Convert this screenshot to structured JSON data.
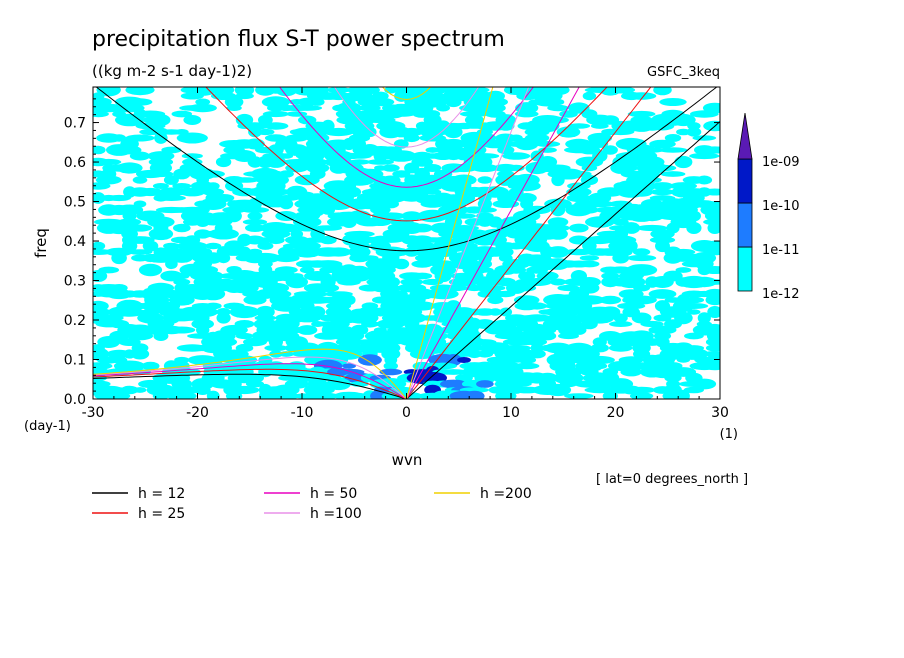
{
  "chart_data": {
    "type": "heatmap",
    "title": "precipitation flux S-T power spectrum",
    "subtitle": "((kg m-2 s-1 day-1)2)",
    "model_label": "GSFC_3keq",
    "xlabel": "wvn",
    "ylabel": "freq",
    "x_unit": "(1)",
    "y_unit": "(day-1)",
    "region_note": "[ lat=0 degrees_north ]",
    "xlim": [
      -30,
      30
    ],
    "ylim": [
      0,
      0.79
    ],
    "x_ticks": [
      "-30",
      "-20",
      "-10",
      "0",
      "10",
      "20",
      "30"
    ],
    "y_ticks": [
      "0.0",
      "0.1",
      "0.2",
      "0.3",
      "0.4",
      "0.5",
      "0.6",
      "0.7"
    ],
    "colorbar": {
      "levels": [
        "1e-12",
        "1e-11",
        "1e-10",
        "1e-09"
      ],
      "colors": [
        "#00ffff",
        "#1e7cff",
        "#0018c8",
        "#5a1ab4"
      ]
    },
    "dispersion_curves": [
      {
        "label": "h = 12",
        "h": 12,
        "color": "#000000"
      },
      {
        "label": "h = 25",
        "h": 25,
        "color": "#ee1111"
      },
      {
        "label": "h = 50",
        "h": 50,
        "color": "#e800c0"
      },
      {
        "label": "h =100",
        "h": 100,
        "color": "#e890e8"
      },
      {
        "label": "h =200",
        "h": 200,
        "color": "#f0d000"
      }
    ]
  }
}
